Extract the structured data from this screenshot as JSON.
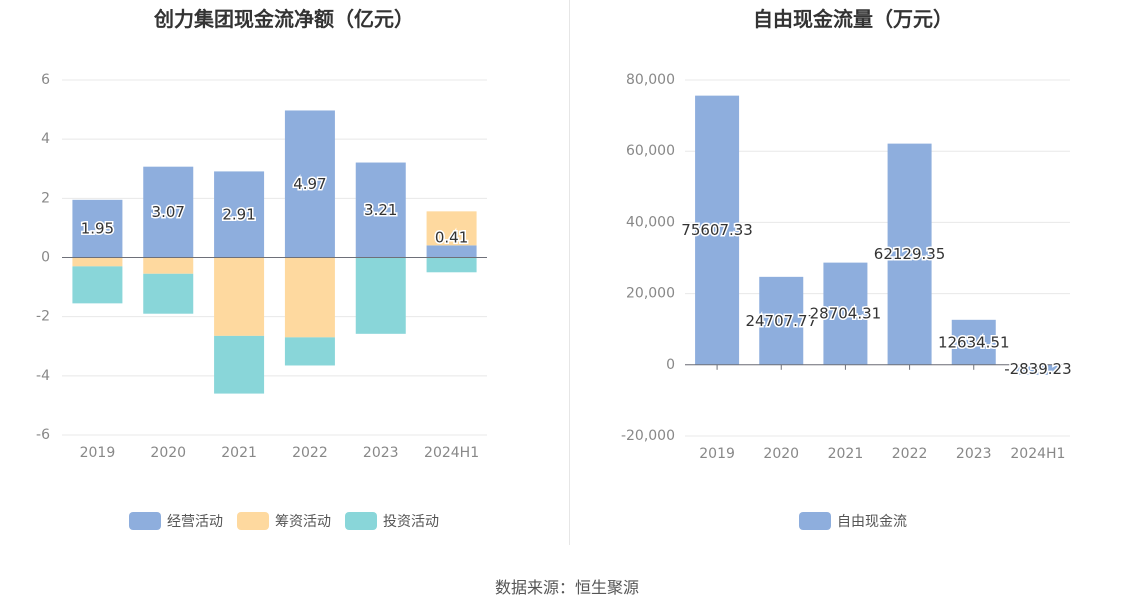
{
  "charts": {
    "left": {
      "title": "创力集团现金流净额（亿元）",
      "legend": [
        {
          "label": "经营活动",
          "color": "#8eaedd"
        },
        {
          "label": "筹资活动",
          "color": "#fed99f"
        },
        {
          "label": "投资活动",
          "color": "#89d6d9"
        }
      ]
    },
    "right": {
      "title": "自由现金流量（万元）",
      "legend": [
        {
          "label": "自由现金流",
          "color": "#8eaedd"
        }
      ]
    }
  },
  "source": "数据来源：恒生聚源",
  "chart_data": [
    {
      "type": "bar",
      "stacked": true,
      "title": "创力集团现金流净额（亿元）",
      "categories": [
        "2019",
        "2020",
        "2021",
        "2022",
        "2023",
        "2024H1"
      ],
      "ylim": [
        -6,
        6
      ],
      "yticks": [
        6,
        4,
        2,
        0,
        -2,
        -4,
        -6
      ],
      "grid": true,
      "legend_position": "bottom",
      "series": [
        {
          "name": "经营活动",
          "color": "#8eaedd",
          "values": [
            1.95,
            3.07,
            2.91,
            4.97,
            3.21,
            0.41
          ],
          "labels": [
            "1.95",
            "3.07",
            "2.91",
            "4.97",
            "3.21",
            "0.41"
          ]
        },
        {
          "name": "筹资活动",
          "color": "#fed99f",
          "values": [
            -0.3,
            -0.55,
            -2.65,
            -2.7,
            0,
            1.15
          ]
        },
        {
          "name": "投资活动",
          "color": "#89d6d9",
          "values": [
            -1.25,
            -1.35,
            -1.95,
            -0.95,
            -2.58,
            -0.5
          ]
        }
      ]
    },
    {
      "type": "bar",
      "title": "自由现金流量（万元）",
      "categories": [
        "2019",
        "2020",
        "2021",
        "2022",
        "2023",
        "2024H1"
      ],
      "ylim": [
        -20000,
        80000
      ],
      "yticks": [
        "80,000",
        "60,000",
        "40,000",
        "20,000",
        "0",
        "-20,000"
      ],
      "grid": true,
      "legend_position": "bottom",
      "series": [
        {
          "name": "自由现金流",
          "color": "#8eaedd",
          "values": [
            75607.33,
            24707.77,
            28704.31,
            62129.35,
            12634.51,
            -2839.23
          ],
          "labels": [
            "75607.33",
            "24707.77",
            "28704.31",
            "62129.35",
            "12634.51",
            "-2839.23"
          ]
        }
      ]
    }
  ]
}
